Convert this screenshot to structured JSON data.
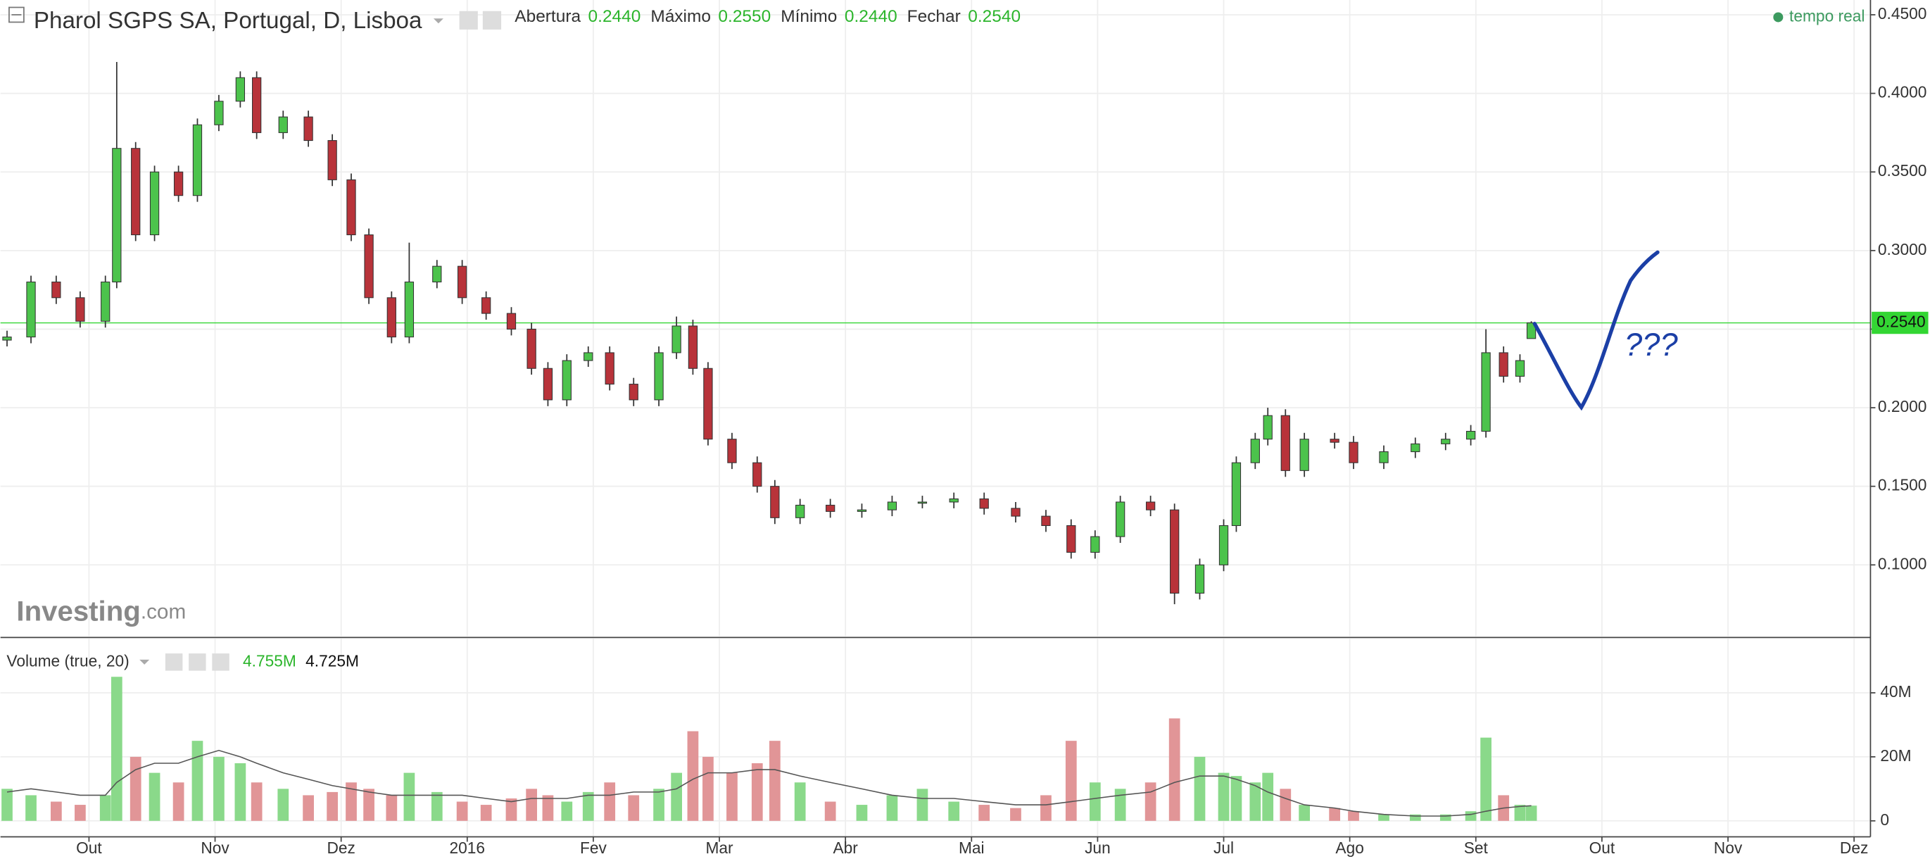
{
  "chart_data": [
    {
      "type": "candlestick",
      "title": "Pharol SGPS SA, Portugal, D, Lisboa",
      "header": [
        [
          "Abertura",
          "0.2440"
        ],
        [
          "Máximo",
          "0.2550"
        ],
        [
          "Mínimo",
          "0.2440"
        ],
        [
          "Fechar",
          "0.2540"
        ]
      ],
      "realtime": "tempo real",
      "watermark": [
        "Investing",
        ".com"
      ],
      "annotation": "???",
      "up_color": "#4cc34c",
      "down_color": "#b8333a",
      "last_color": "#33d633",
      "x": [
        0.35,
        0.54,
        0.74,
        0.93,
        1.13,
        1.22,
        1.37,
        1.52,
        1.71,
        1.86,
        2.03,
        2.2,
        2.33,
        2.54,
        2.74,
        2.93,
        3.08,
        3.22,
        3.4,
        3.54,
        3.76,
        3.96,
        4.15,
        4.35,
        4.51,
        4.64,
        4.79,
        4.96,
        5.13,
        5.32,
        5.52,
        5.66,
        5.79,
        5.91,
        6.1,
        6.3,
        6.44,
        6.64,
        6.88,
        7.13,
        7.37,
        7.61,
        7.86,
        8.1,
        8.35,
        8.59,
        8.79,
        8.98,
        9.18,
        9.42,
        9.61,
        9.81,
        10.0,
        10.1,
        10.25,
        10.35,
        10.49,
        10.64,
        10.88,
        11.03,
        11.27,
        11.52,
        11.76,
        11.96,
        12.08,
        12.22,
        12.35,
        12.44
      ],
      "open": [
        0.243,
        0.245,
        0.28,
        0.27,
        0.255,
        0.28,
        0.365,
        0.31,
        0.35,
        0.335,
        0.38,
        0.395,
        0.41,
        0.375,
        0.385,
        0.37,
        0.345,
        0.31,
        0.27,
        0.245,
        0.28,
        0.29,
        0.27,
        0.26,
        0.25,
        0.225,
        0.205,
        0.23,
        0.235,
        0.215,
        0.205,
        0.235,
        0.252,
        0.225,
        0.18,
        0.165,
        0.15,
        0.13,
        0.138,
        0.134,
        0.135,
        0.14,
        0.14,
        0.142,
        0.136,
        0.131,
        0.125,
        0.108,
        0.118,
        0.14,
        0.135,
        0.082,
        0.1,
        0.125,
        0.165,
        0.18,
        0.195,
        0.16,
        0.18,
        0.178,
        0.165,
        0.172,
        0.177,
        0.18,
        0.185,
        0.235,
        0.22,
        0.244
      ],
      "high": [
        0.249,
        0.284,
        0.284,
        0.274,
        0.284,
        0.42,
        0.369,
        0.354,
        0.354,
        0.384,
        0.399,
        0.414,
        0.414,
        0.389,
        0.389,
        0.374,
        0.349,
        0.314,
        0.274,
        0.305,
        0.294,
        0.294,
        0.274,
        0.264,
        0.254,
        0.229,
        0.234,
        0.239,
        0.239,
        0.219,
        0.239,
        0.258,
        0.256,
        0.229,
        0.184,
        0.169,
        0.154,
        0.142,
        0.142,
        0.139,
        0.144,
        0.144,
        0.146,
        0.146,
        0.14,
        0.135,
        0.129,
        0.122,
        0.144,
        0.144,
        0.139,
        0.104,
        0.129,
        0.169,
        0.184,
        0.2,
        0.199,
        0.184,
        0.184,
        0.182,
        0.176,
        0.181,
        0.184,
        0.189,
        0.25,
        0.239,
        0.234,
        0.255
      ],
      "low": [
        0.239,
        0.241,
        0.266,
        0.251,
        0.251,
        0.276,
        0.306,
        0.306,
        0.331,
        0.331,
        0.376,
        0.391,
        0.371,
        0.371,
        0.366,
        0.341,
        0.306,
        0.266,
        0.241,
        0.241,
        0.276,
        0.266,
        0.256,
        0.246,
        0.221,
        0.201,
        0.201,
        0.226,
        0.211,
        0.201,
        0.201,
        0.231,
        0.221,
        0.176,
        0.161,
        0.146,
        0.126,
        0.126,
        0.13,
        0.13,
        0.131,
        0.136,
        0.136,
        0.132,
        0.127,
        0.121,
        0.104,
        0.104,
        0.114,
        0.131,
        0.075,
        0.078,
        0.096,
        0.121,
        0.161,
        0.176,
        0.156,
        0.156,
        0.174,
        0.161,
        0.161,
        0.168,
        0.173,
        0.176,
        0.181,
        0.216,
        0.216,
        0.244
      ],
      "close": [
        0.245,
        0.28,
        0.27,
        0.255,
        0.28,
        0.365,
        0.31,
        0.35,
        0.335,
        0.38,
        0.395,
        0.41,
        0.375,
        0.385,
        0.37,
        0.345,
        0.31,
        0.27,
        0.245,
        0.28,
        0.29,
        0.27,
        0.26,
        0.25,
        0.225,
        0.205,
        0.23,
        0.235,
        0.215,
        0.205,
        0.235,
        0.252,
        0.225,
        0.18,
        0.165,
        0.15,
        0.13,
        0.138,
        0.134,
        0.135,
        0.14,
        0.14,
        0.142,
        0.136,
        0.131,
        0.125,
        0.108,
        0.118,
        0.14,
        0.135,
        0.082,
        0.1,
        0.125,
        0.165,
        0.18,
        0.195,
        0.16,
        0.18,
        0.178,
        0.165,
        0.172,
        0.177,
        0.18,
        0.185,
        0.235,
        0.22,
        0.23,
        0.254
      ],
      "last_price": {
        "value": 0.254,
        "label": "0.2540"
      },
      "xlim": [
        0.298,
        15.13
      ],
      "xticks": [
        {
          "value": 1,
          "label": "Out"
        },
        {
          "value": 2,
          "label": "Nov"
        },
        {
          "value": 3,
          "label": "Dez"
        },
        {
          "value": 4,
          "label": "2016"
        },
        {
          "value": 5,
          "label": "Fev"
        },
        {
          "value": 6,
          "label": "Mar"
        },
        {
          "value": 7,
          "label": "Abr"
        },
        {
          "value": 8,
          "label": "Mai"
        },
        {
          "value": 9,
          "label": "Jun"
        },
        {
          "value": 10,
          "label": "Jul"
        },
        {
          "value": 11,
          "label": "Ago"
        },
        {
          "value": 12,
          "label": "Set"
        },
        {
          "value": 13,
          "label": "Out"
        },
        {
          "value": 14,
          "label": "Nov"
        },
        {
          "value": 15,
          "label": "Dez"
        }
      ],
      "ylim": [
        0.0546,
        0.4594
      ],
      "yticks": [
        {
          "value": 0.1,
          "label": "0.1000"
        },
        {
          "value": 0.15,
          "label": "0.1500"
        },
        {
          "value": 0.2,
          "label": "0.2000"
        },
        {
          "value": 0.25,
          "label": "0.2500"
        },
        {
          "value": 0.3,
          "label": "0.3000"
        },
        {
          "value": 0.35,
          "label": "0.3500"
        },
        {
          "value": 0.4,
          "label": "0.4000"
        },
        {
          "value": 0.45,
          "label": "0.4500"
        }
      ],
      "grid": true
    },
    {
      "type": "bar",
      "title": "Volume (true, 20)",
      "last_labels": [
        "4.755M",
        "4.725M"
      ],
      "up_color": "#8ad98a",
      "down_color": "#e19597",
      "ma_color": "#555555",
      "values": [
        10000000,
        8000000,
        6000000,
        5000000,
        8000000,
        45000000,
        20000000,
        15000000,
        12000000,
        25000000,
        20000000,
        18000000,
        12000000,
        10000000,
        8000000,
        9000000,
        12000000,
        10000000,
        8000000,
        15000000,
        9000000,
        6000000,
        5000000,
        7000000,
        10000000,
        8000000,
        6000000,
        9000000,
        12000000,
        8000000,
        10000000,
        15000000,
        28000000,
        20000000,
        15000000,
        18000000,
        25000000,
        12000000,
        6000000,
        5000000,
        8000000,
        10000000,
        6000000,
        5000000,
        4000000,
        8000000,
        25000000,
        12000000,
        10000000,
        12000000,
        32000000,
        20000000,
        15000000,
        14000000,
        12000000,
        15000000,
        10000000,
        5000000,
        4000000,
        3000000,
        2000000,
        2000000,
        2000000,
        3000000,
        26000000,
        8000000,
        5000000,
        4755000
      ],
      "ma_values": [
        9000000,
        10000000,
        9000000,
        8000000,
        8000000,
        12000000,
        16000000,
        18000000,
        18000000,
        20000000,
        22000000,
        20000000,
        18000000,
        15000000,
        13000000,
        11000000,
        10000000,
        9000000,
        8000000,
        8000000,
        8000000,
        8000000,
        7000000,
        6000000,
        7000000,
        7000000,
        7000000,
        8000000,
        8000000,
        9000000,
        9000000,
        10000000,
        13000000,
        15000000,
        15000000,
        16000000,
        16000000,
        14000000,
        12000000,
        10000000,
        8000000,
        7000000,
        7000000,
        6000000,
        5000000,
        5000000,
        6000000,
        7000000,
        8000000,
        9000000,
        12000000,
        14000000,
        14000000,
        13000000,
        11000000,
        9000000,
        7000000,
        5000000,
        4000000,
        3000000,
        2000000,
        1500000,
        1500000,
        2000000,
        3000000,
        4000000,
        4500000,
        4725000
      ],
      "ylim": [
        -5000000,
        56900000
      ],
      "yticks": [
        0,
        {
          "value": 20000000,
          "label": "20M"
        },
        {
          "value": 40000000,
          "label": "40M"
        }
      ],
      "grid": true
    }
  ]
}
